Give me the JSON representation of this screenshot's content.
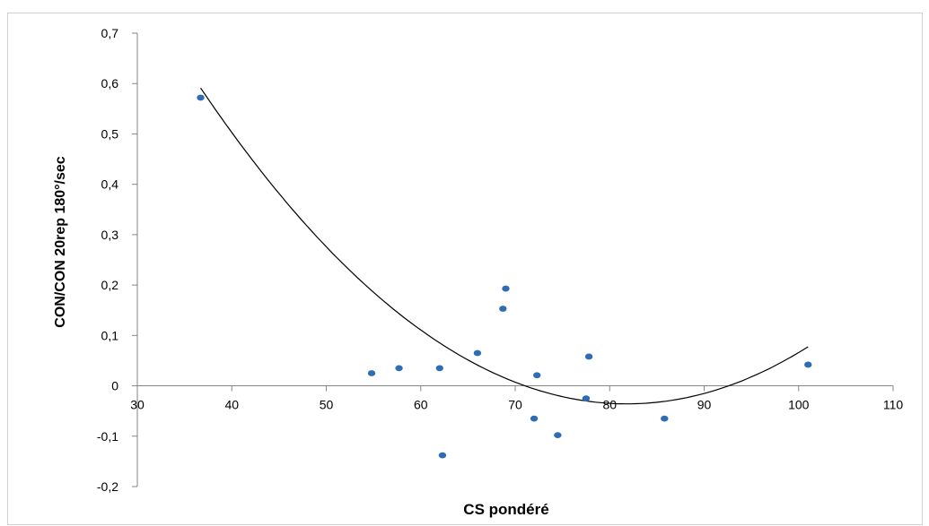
{
  "chart_data": {
    "type": "scatter",
    "title": "",
    "xlabel": "CS pondéré",
    "ylabel": "CON/CON 20rep 180°/sec",
    "xlim": [
      30,
      110
    ],
    "ylim": [
      -0.2,
      0.7
    ],
    "x_ticks": [
      30,
      40,
      50,
      60,
      70,
      80,
      90,
      100,
      110
    ],
    "x_tick_labels": [
      "30",
      "40",
      "50",
      "60",
      "70",
      "80",
      "90",
      "100",
      "110"
    ],
    "y_ticks": [
      -0.2,
      -0.1,
      0,
      0.1,
      0.2,
      0.3,
      0.4,
      0.5,
      0.6,
      0.7
    ],
    "y_tick_labels": [
      "-0,2",
      "-0,1",
      "0",
      "0,1",
      "0,2",
      "0,3",
      "0,4",
      "0,5",
      "0,6",
      "0,7"
    ],
    "grid": false,
    "legend": "none",
    "point_color": "#2e6db4",
    "trendline_color": "#000000",
    "points": [
      {
        "x": 36.7,
        "y": 0.572
      },
      {
        "x": 54.8,
        "y": 0.025
      },
      {
        "x": 57.7,
        "y": 0.035
      },
      {
        "x": 62.0,
        "y": 0.035
      },
      {
        "x": 62.3,
        "y": -0.138
      },
      {
        "x": 66.0,
        "y": 0.065
      },
      {
        "x": 68.7,
        "y": 0.153
      },
      {
        "x": 69.0,
        "y": 0.193
      },
      {
        "x": 72.0,
        "y": -0.065
      },
      {
        "x": 72.3,
        "y": 0.021
      },
      {
        "x": 74.5,
        "y": -0.098
      },
      {
        "x": 77.5,
        "y": -0.025
      },
      {
        "x": 77.8,
        "y": 0.058
      },
      {
        "x": 85.8,
        "y": -0.065
      },
      {
        "x": 101.0,
        "y": 0.042
      }
    ],
    "trendline": {
      "type": "polynomial",
      "order": 2,
      "x_range": [
        36.7,
        101.0
      ],
      "coefficients": {
        "a": 0.000308,
        "b": -0.0504,
        "c": 2.026
      }
    }
  }
}
